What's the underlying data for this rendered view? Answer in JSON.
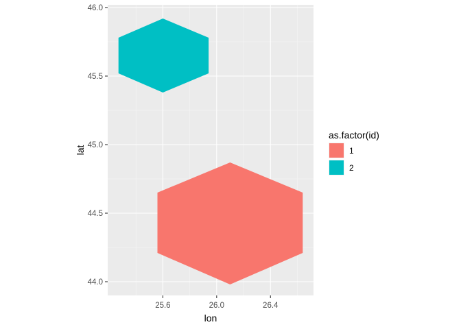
{
  "chart_data": {
    "type": "polygon",
    "xlabel": "lon",
    "ylabel": "lat",
    "xlim": [
      25.19,
      26.72
    ],
    "ylim": [
      43.9,
      46.02
    ],
    "x_ticks": [
      25.6,
      26.0,
      26.4
    ],
    "x_tick_labels": [
      "25.6",
      "26.0",
      "26.4"
    ],
    "y_ticks": [
      44.0,
      44.5,
      45.0,
      45.5,
      46.0
    ],
    "y_tick_labels": [
      "44.0",
      "44.5",
      "45.0",
      "45.5",
      "46.0"
    ],
    "grid": true,
    "legend": {
      "title": "as.factor(id)",
      "placement": "right"
    },
    "series": [
      {
        "name": "1",
        "color": "#F8766D",
        "points": [
          [
            26.1,
            44.87
          ],
          [
            26.64,
            44.65
          ],
          [
            26.64,
            44.21
          ],
          [
            26.1,
            43.98
          ],
          [
            25.56,
            44.21
          ],
          [
            25.56,
            44.65
          ]
        ]
      },
      {
        "name": "2",
        "color": "#00BFC4",
        "points": [
          [
            25.6,
            45.92
          ],
          [
            25.94,
            45.78
          ],
          [
            25.94,
            45.52
          ],
          [
            25.6,
            45.38
          ],
          [
            25.27,
            45.52
          ],
          [
            25.27,
            45.78
          ]
        ]
      }
    ]
  }
}
